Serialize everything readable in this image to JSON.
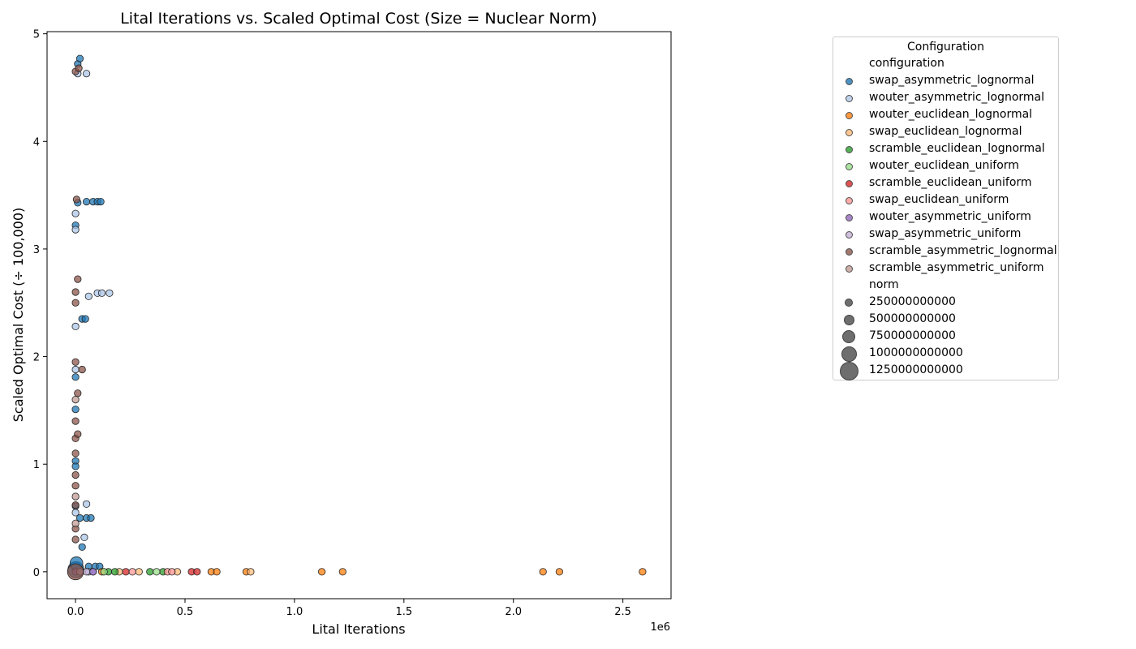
{
  "chart_data": {
    "type": "scatter",
    "title": "Lital Iterations vs. Scaled Optimal Cost (Size = Nuclear Norm)",
    "xlabel": "Lital Iterations",
    "ylabel": "Scaled Optimal Cost (÷ 100,000)",
    "x_offset_label": "1e6",
    "xlim": [
      -0.13,
      2.72
    ],
    "ylim": [
      -0.25,
      5.02
    ],
    "x_ticks": [
      0.0,
      0.5,
      1.0,
      1.5,
      2.0,
      2.5
    ],
    "x_tick_labels": [
      "0.0",
      "0.5",
      "1.0",
      "1.5",
      "2.0",
      "2.5"
    ],
    "y_ticks": [
      0,
      1,
      2,
      3,
      4,
      5
    ],
    "y_tick_labels": [
      "0",
      "1",
      "2",
      "3",
      "4",
      "5"
    ],
    "grid": false,
    "legend_placement": "right, outside plot",
    "legend": {
      "title": "Configuration",
      "hue_heading": "configuration",
      "size_heading": "norm",
      "size_entries": [
        "250000000000",
        "500000000000",
        "750000000000",
        "1000000000000",
        "1250000000000"
      ],
      "size_values": [
        250000000000,
        500000000000,
        750000000000,
        1000000000000,
        1250000000000
      ]
    },
    "series": [
      {
        "name": "swap_asymmetric_lognormal",
        "color": "#1f77b4",
        "points": [
          [
            0.0,
            0.05,
            300000000000
          ],
          [
            0.002,
            0.02,
            900000000000
          ],
          [
            0.004,
            0.08,
            600000000000
          ],
          [
            0.01,
            4.72,
            60000000000
          ],
          [
            0.02,
            4.77,
            60000000000
          ],
          [
            0.01,
            3.43,
            60000000000
          ],
          [
            0.05,
            3.44,
            60000000000
          ],
          [
            0.08,
            3.44,
            60000000000
          ],
          [
            0.1,
            3.44,
            60000000000
          ],
          [
            0.115,
            3.44,
            60000000000
          ],
          [
            0.0,
            3.22,
            60000000000
          ],
          [
            0.03,
            2.35,
            60000000000
          ],
          [
            0.045,
            2.35,
            60000000000
          ],
          [
            0.0,
            1.81,
            60000000000
          ],
          [
            0.0,
            1.51,
            60000000000
          ],
          [
            0.0,
            1.03,
            60000000000
          ],
          [
            0.0,
            0.98,
            60000000000
          ],
          [
            0.02,
            0.5,
            60000000000
          ],
          [
            0.05,
            0.5,
            60000000000
          ],
          [
            0.07,
            0.5,
            60000000000
          ],
          [
            0.03,
            0.23,
            60000000000
          ],
          [
            0.06,
            0.05,
            60000000000
          ],
          [
            0.09,
            0.05,
            60000000000
          ],
          [
            0.11,
            0.05,
            60000000000
          ],
          [
            0.0,
            0.61,
            60000000000
          ]
        ]
      },
      {
        "name": "wouter_asymmetric_lognormal",
        "color": "#aec7e8",
        "points": [
          [
            0.01,
            4.63,
            60000000000
          ],
          [
            0.05,
            4.63,
            60000000000
          ],
          [
            0.0,
            3.18,
            60000000000
          ],
          [
            0.0,
            3.33,
            60000000000
          ],
          [
            0.1,
            2.59,
            60000000000
          ],
          [
            0.12,
            2.59,
            60000000000
          ],
          [
            0.155,
            2.59,
            60000000000
          ],
          [
            0.06,
            2.56,
            60000000000
          ],
          [
            0.0,
            2.28,
            60000000000
          ],
          [
            0.0,
            1.88,
            60000000000
          ],
          [
            0.0,
            0.55,
            60000000000
          ],
          [
            0.05,
            0.63,
            60000000000
          ],
          [
            0.04,
            0.32,
            60000000000
          ],
          [
            0.06,
            0.0,
            60000000000
          ],
          [
            0.08,
            0.0,
            60000000000
          ]
        ]
      },
      {
        "name": "wouter_euclidean_lognormal",
        "color": "#ff7f0e",
        "points": [
          [
            0.62,
            0.0,
            60000000000
          ],
          [
            0.645,
            0.0,
            60000000000
          ],
          [
            0.78,
            0.0,
            60000000000
          ],
          [
            1.125,
            0.0,
            60000000000
          ],
          [
            1.22,
            0.0,
            60000000000
          ],
          [
            2.135,
            0.0,
            60000000000
          ],
          [
            2.21,
            0.0,
            60000000000
          ],
          [
            2.59,
            0.0,
            60000000000
          ],
          [
            0.12,
            0.0,
            60000000000
          ]
        ]
      },
      {
        "name": "swap_euclidean_lognormal",
        "color": "#ffbb78",
        "points": [
          [
            0.29,
            0.0,
            60000000000
          ],
          [
            0.465,
            0.0,
            60000000000
          ],
          [
            0.8,
            0.0,
            60000000000
          ],
          [
            0.2,
            0.0,
            60000000000
          ]
        ]
      },
      {
        "name": "scramble_euclidean_lognormal",
        "color": "#2ca02c",
        "points": [
          [
            0.34,
            0.0,
            60000000000
          ],
          [
            0.4,
            0.0,
            60000000000
          ],
          [
            0.15,
            0.0,
            60000000000
          ],
          [
            0.18,
            0.0,
            60000000000
          ]
        ]
      },
      {
        "name": "wouter_euclidean_uniform",
        "color": "#98df8a",
        "points": [
          [
            0.37,
            0.0,
            60000000000
          ],
          [
            0.13,
            0.0,
            60000000000
          ]
        ]
      },
      {
        "name": "scramble_euclidean_uniform",
        "color": "#d62728",
        "points": [
          [
            0.53,
            0.0,
            60000000000
          ],
          [
            0.555,
            0.0,
            60000000000
          ],
          [
            0.23,
            0.0,
            60000000000
          ]
        ]
      },
      {
        "name": "swap_euclidean_uniform",
        "color": "#ff9896",
        "points": [
          [
            0.26,
            0.0,
            60000000000
          ],
          [
            0.42,
            0.0,
            60000000000
          ],
          [
            0.44,
            0.0,
            60000000000
          ]
        ]
      },
      {
        "name": "wouter_asymmetric_uniform",
        "color": "#9467bd",
        "points": [
          [
            0.0,
            0.0,
            60000000000
          ],
          [
            0.08,
            0.0,
            60000000000
          ]
        ]
      },
      {
        "name": "swap_asymmetric_uniform",
        "color": "#c5b0d5",
        "points": [
          [
            0.02,
            0.0,
            60000000000
          ],
          [
            0.05,
            0.0,
            60000000000
          ]
        ]
      },
      {
        "name": "scramble_asymmetric_lognormal",
        "color": "#8c564b",
        "points": [
          [
            0.0,
            4.65,
            60000000000
          ],
          [
            0.015,
            4.68,
            60000000000
          ],
          [
            0.005,
            3.46,
            60000000000
          ],
          [
            0.01,
            2.72,
            60000000000
          ],
          [
            0.0,
            2.6,
            60000000000
          ],
          [
            0.0,
            2.5,
            60000000000
          ],
          [
            0.0,
            1.95,
            60000000000
          ],
          [
            0.03,
            1.88,
            60000000000
          ],
          [
            0.01,
            1.66,
            60000000000
          ],
          [
            0.0,
            1.4,
            60000000000
          ],
          [
            0.0,
            1.24,
            60000000000
          ],
          [
            0.01,
            1.28,
            60000000000
          ],
          [
            0.0,
            1.1,
            60000000000
          ],
          [
            0.0,
            0.9,
            60000000000
          ],
          [
            0.0,
            0.8,
            60000000000
          ],
          [
            0.0,
            0.62,
            60000000000
          ],
          [
            0.0,
            0.4,
            60000000000
          ],
          [
            0.0,
            0.3,
            60000000000
          ],
          [
            0.0,
            0.0,
            900000000000
          ]
        ]
      },
      {
        "name": "scramble_asymmetric_uniform",
        "color": "#c49c94",
        "points": [
          [
            0.0,
            1.6,
            60000000000
          ],
          [
            0.0,
            0.7,
            60000000000
          ],
          [
            0.0,
            0.45,
            60000000000
          ]
        ]
      }
    ]
  }
}
